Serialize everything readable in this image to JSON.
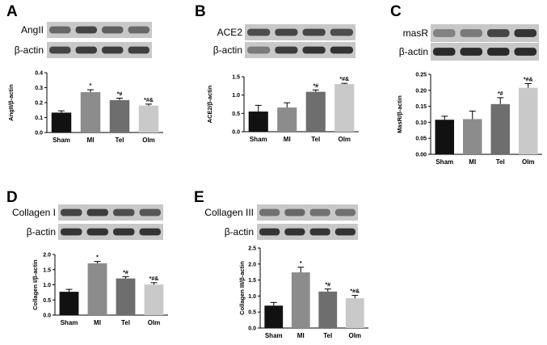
{
  "chart_data": [
    {
      "type": "bar",
      "panel_label": "A",
      "blot_labels": [
        "AngII",
        "β-actin"
      ],
      "categories": [
        "Sham",
        "MI",
        "Tel",
        "Olm"
      ],
      "values": [
        0.133,
        0.27,
        0.217,
        0.18
      ],
      "errors": [
        0.012,
        0.016,
        0.013,
        0.01
      ],
      "significance": [
        "",
        "*",
        "*#",
        "*#&"
      ],
      "colors": [
        "#111111",
        "#8c8c8c",
        "#6e6e6e",
        "#c9c9c9"
      ],
      "ylabel": "AngII/β-actin",
      "ylim": [
        0,
        0.4
      ],
      "yticks": [
        "0.0",
        "0.1",
        "0.2",
        "0.3",
        "0.4"
      ]
    },
    {
      "type": "bar",
      "panel_label": "B",
      "blot_labels": [
        "ACE2",
        "β-actin"
      ],
      "categories": [
        "Sham",
        "MI",
        "Tel",
        "Olm"
      ],
      "values": [
        0.55,
        0.66,
        1.09,
        1.3
      ],
      "errors": [
        0.17,
        0.13,
        0.05,
        0.02
      ],
      "significance": [
        "",
        "",
        "*#",
        "*#&"
      ],
      "colors": [
        "#111111",
        "#8c8c8c",
        "#6e6e6e",
        "#c9c9c9"
      ],
      "ylabel": "ACE2/β-actin",
      "ylim": [
        0,
        1.5
      ],
      "yticks": [
        "0.0",
        "0.5",
        "1.0",
        "1.5"
      ]
    },
    {
      "type": "bar",
      "panel_label": "C",
      "blot_labels": [
        "masR",
        "β-actin"
      ],
      "categories": [
        "Sham",
        "MI",
        "Tel",
        "Olm"
      ],
      "values": [
        0.108,
        0.11,
        0.157,
        0.208
      ],
      "errors": [
        0.011,
        0.025,
        0.02,
        0.013
      ],
      "significance": [
        "",
        "",
        "*#",
        "*#&"
      ],
      "colors": [
        "#111111",
        "#8c8c8c",
        "#6e6e6e",
        "#c9c9c9"
      ],
      "ylabel": "MasR/β-actin",
      "ylim": [
        0,
        0.25
      ],
      "yticks": [
        "0.00",
        "0.05",
        "0.10",
        "0.15",
        "0.20",
        "0.25"
      ]
    },
    {
      "type": "bar",
      "panel_label": "D",
      "blot_labels": [
        "Collagen I",
        "β-actin"
      ],
      "categories": [
        "Sham",
        "MI",
        "Tel",
        "Olm"
      ],
      "values": [
        0.77,
        1.71,
        1.21,
        1.01
      ],
      "errors": [
        0.08,
        0.06,
        0.06,
        0.06
      ],
      "significance": [
        "",
        "*",
        "*#",
        "*#&"
      ],
      "colors": [
        "#111111",
        "#8c8c8c",
        "#6e6e6e",
        "#c9c9c9"
      ],
      "ylabel": "Collagen I/β-actin",
      "ylim": [
        0,
        2.0
      ],
      "yticks": [
        "0.0",
        "0.5",
        "1.0",
        "1.5",
        "2.0"
      ]
    },
    {
      "type": "bar",
      "panel_label": "E",
      "blot_labels": [
        "Collagen III",
        "β-actin"
      ],
      "categories": [
        "Sham",
        "MI",
        "Tel",
        "Olm"
      ],
      "values": [
        0.7,
        1.74,
        1.14,
        0.93
      ],
      "errors": [
        0.1,
        0.16,
        0.08,
        0.09
      ],
      "significance": [
        "",
        "*",
        "*#",
        "*#&"
      ],
      "colors": [
        "#111111",
        "#8c8c8c",
        "#6e6e6e",
        "#c9c9c9"
      ],
      "ylabel": "Collagen III/β-actin",
      "ylim": [
        0,
        2.5
      ],
      "yticks": [
        "0.0",
        "0.5",
        "1.0",
        "1.5",
        "2.0",
        "2.5"
      ]
    }
  ]
}
